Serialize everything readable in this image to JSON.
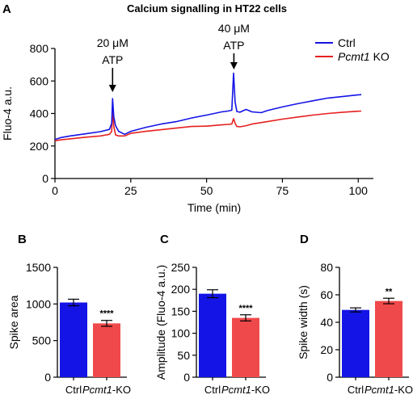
{
  "figure": {
    "panel_labels": [
      "A",
      "B",
      "C",
      "D"
    ],
    "title": "Calcium signalling in HT22 cells"
  },
  "colors": {
    "ctrl": "#1414e6",
    "ko": "#e62020",
    "ko_bar": "#f0494b",
    "axis": "#000000"
  },
  "chart_data": [
    {
      "type": "line",
      "panel": "A",
      "title": "Calcium signalling in HT22 cells",
      "xlabel": "Time (min)",
      "ylabel": "Fluo-4 a.u.",
      "xlim": [
        0,
        105
      ],
      "ylim": [
        0,
        800
      ],
      "xticks": [
        0,
        25,
        50,
        75,
        100
      ],
      "yticks": [
        0,
        200,
        400,
        600,
        800
      ],
      "legend": {
        "placement": "top-right",
        "entries": [
          {
            "italic": "",
            "plain": "Ctrl"
          },
          {
            "italic": "Pcmt1",
            "plain": " KO"
          }
        ]
      },
      "annotations": [
        {
          "x": 19,
          "line1": "20 μM",
          "line2": "ATP"
        },
        {
          "x": 59,
          "line1": "40 μM",
          "line2": "ATP"
        }
      ],
      "series": [
        {
          "name": "Ctrl",
          "color": "#1414e6",
          "x": [
            0,
            2,
            5,
            10,
            15,
            18,
            18.7,
            19,
            19.4,
            20,
            21,
            23,
            25,
            30,
            35,
            40,
            45,
            50,
            55,
            57,
            58.3,
            58.9,
            59.4,
            60,
            61,
            63,
            65,
            68,
            70,
            75,
            80,
            85,
            90,
            95,
            100,
            101
          ],
          "y": [
            240,
            252,
            262,
            275,
            288,
            302,
            340,
            492,
            380,
            325,
            290,
            272,
            290,
            315,
            335,
            350,
            372,
            390,
            410,
            415,
            420,
            648,
            470,
            412,
            408,
            425,
            410,
            405,
            418,
            440,
            460,
            478,
            495,
            505,
            515,
            516
          ]
        },
        {
          "name": "Pcmt1 KO",
          "color": "#e62020",
          "x": [
            0,
            2,
            5,
            10,
            15,
            18,
            18.7,
            19,
            19.4,
            20,
            21,
            23,
            25,
            30,
            35,
            40,
            45,
            50,
            55,
            57,
            58.3,
            58.9,
            59.4,
            60,
            61,
            63,
            65,
            70,
            75,
            80,
            85,
            90,
            95,
            100,
            101
          ],
          "y": [
            232,
            238,
            244,
            254,
            262,
            272,
            290,
            430,
            320,
            268,
            262,
            262,
            278,
            290,
            300,
            310,
            320,
            322,
            330,
            333,
            335,
            368,
            340,
            320,
            318,
            325,
            335,
            350,
            365,
            378,
            390,
            400,
            408,
            414,
            415
          ]
        }
      ]
    },
    {
      "type": "bar",
      "panel": "B",
      "title": "",
      "xlabel": "",
      "ylabel": "Spike area",
      "categories": [
        {
          "italic": "",
          "plain": "Ctrl"
        },
        {
          "italic": "Pcmt1",
          "plain": "-KO"
        }
      ],
      "values": [
        1020,
        735
      ],
      "errors": [
        45,
        40
      ],
      "colors": [
        "#1414e6",
        "#f0494b"
      ],
      "ylim": [
        0,
        1500
      ],
      "yticks": [
        0,
        500,
        1000,
        1500
      ],
      "significance": "****"
    },
    {
      "type": "bar",
      "panel": "C",
      "title": "",
      "xlabel": "",
      "ylabel": "Amplitude (Fluo-4 a.u.)",
      "categories": [
        {
          "italic": "",
          "plain": "Ctrl"
        },
        {
          "italic": "Pcmt1",
          "plain": "-KO"
        }
      ],
      "values": [
        190,
        135
      ],
      "errors": [
        9,
        7
      ],
      "colors": [
        "#1414e6",
        "#f0494b"
      ],
      "ylim": [
        0,
        250
      ],
      "yticks": [
        0,
        50,
        100,
        150,
        200,
        250
      ],
      "significance": "****"
    },
    {
      "type": "bar",
      "panel": "D",
      "title": "",
      "xlabel": "",
      "ylabel": "Spike width (s)",
      "categories": [
        {
          "italic": "",
          "plain": "Ctrl"
        },
        {
          "italic": "Pcmt1",
          "plain": "-KO"
        }
      ],
      "values": [
        49,
        55.5
      ],
      "errors": [
        1.5,
        2
      ],
      "colors": [
        "#1414e6",
        "#f0494b"
      ],
      "ylim": [
        0,
        80
      ],
      "yticks": [
        0,
        20,
        40,
        60,
        80
      ],
      "significance": "**"
    }
  ]
}
